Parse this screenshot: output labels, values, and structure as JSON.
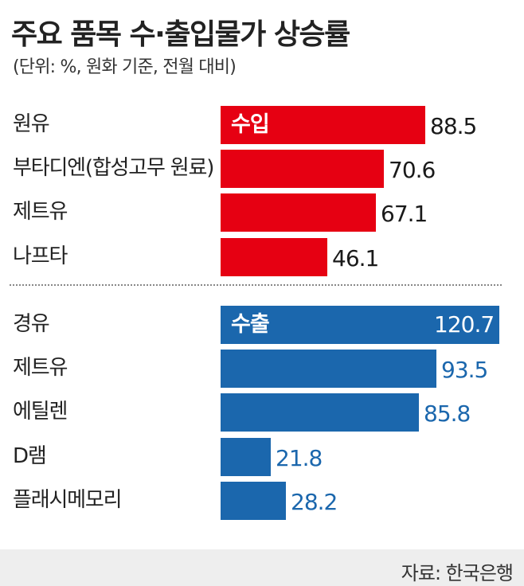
{
  "chart_data": {
    "type": "bar",
    "orientation": "horizontal",
    "title": "주요 품목 수·출입물가 상승률",
    "subtitle": "(단위: %, 원화 기준, 전월 대비)",
    "source": "자료: 한국은행",
    "xlim": [
      0,
      120.7
    ],
    "grid": false,
    "groups": [
      {
        "label": "수입",
        "color": "#e60012",
        "categories": [
          "원유",
          "부타디엔(합성고무 원료)",
          "제트유",
          "나프타"
        ],
        "values": [
          88.5,
          70.6,
          67.1,
          46.1
        ]
      },
      {
        "label": "수출",
        "color": "#1b67ad",
        "categories": [
          "경유",
          "제트유",
          "에틸렌",
          "D램",
          "플래시메모리"
        ],
        "values": [
          120.7,
          93.5,
          85.8,
          21.8,
          28.2
        ]
      }
    ]
  }
}
